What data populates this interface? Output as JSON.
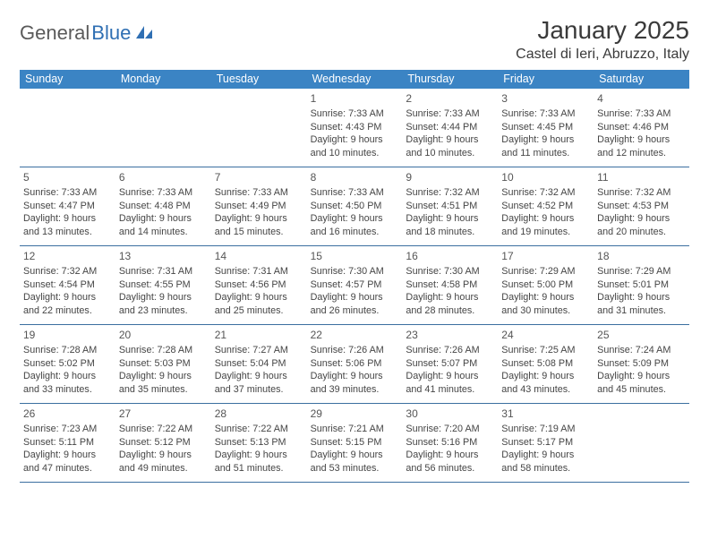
{
  "brand": {
    "part1": "General",
    "part2": "Blue"
  },
  "title": "January 2025",
  "location": "Castel di Ieri, Abruzzo, Italy",
  "colors": {
    "header_bg": "#3b84c4",
    "header_text": "#ffffff",
    "cell_border": "#3b6fa0",
    "body_text": "#454545",
    "title_text": "#3a3a3a",
    "logo_gray": "#5a5a5a",
    "logo_blue": "#2f6fb3"
  },
  "weekdays": [
    "Sunday",
    "Monday",
    "Tuesday",
    "Wednesday",
    "Thursday",
    "Friday",
    "Saturday"
  ],
  "leading_blanks": 3,
  "days": [
    {
      "n": "1",
      "sunrise": "7:33 AM",
      "sunset": "4:43 PM",
      "daylight": "9 hours and 10 minutes."
    },
    {
      "n": "2",
      "sunrise": "7:33 AM",
      "sunset": "4:44 PM",
      "daylight": "9 hours and 10 minutes."
    },
    {
      "n": "3",
      "sunrise": "7:33 AM",
      "sunset": "4:45 PM",
      "daylight": "9 hours and 11 minutes."
    },
    {
      "n": "4",
      "sunrise": "7:33 AM",
      "sunset": "4:46 PM",
      "daylight": "9 hours and 12 minutes."
    },
    {
      "n": "5",
      "sunrise": "7:33 AM",
      "sunset": "4:47 PM",
      "daylight": "9 hours and 13 minutes."
    },
    {
      "n": "6",
      "sunrise": "7:33 AM",
      "sunset": "4:48 PM",
      "daylight": "9 hours and 14 minutes."
    },
    {
      "n": "7",
      "sunrise": "7:33 AM",
      "sunset": "4:49 PM",
      "daylight": "9 hours and 15 minutes."
    },
    {
      "n": "8",
      "sunrise": "7:33 AM",
      "sunset": "4:50 PM",
      "daylight": "9 hours and 16 minutes."
    },
    {
      "n": "9",
      "sunrise": "7:32 AM",
      "sunset": "4:51 PM",
      "daylight": "9 hours and 18 minutes."
    },
    {
      "n": "10",
      "sunrise": "7:32 AM",
      "sunset": "4:52 PM",
      "daylight": "9 hours and 19 minutes."
    },
    {
      "n": "11",
      "sunrise": "7:32 AM",
      "sunset": "4:53 PM",
      "daylight": "9 hours and 20 minutes."
    },
    {
      "n": "12",
      "sunrise": "7:32 AM",
      "sunset": "4:54 PM",
      "daylight": "9 hours and 22 minutes."
    },
    {
      "n": "13",
      "sunrise": "7:31 AM",
      "sunset": "4:55 PM",
      "daylight": "9 hours and 23 minutes."
    },
    {
      "n": "14",
      "sunrise": "7:31 AM",
      "sunset": "4:56 PM",
      "daylight": "9 hours and 25 minutes."
    },
    {
      "n": "15",
      "sunrise": "7:30 AM",
      "sunset": "4:57 PM",
      "daylight": "9 hours and 26 minutes."
    },
    {
      "n": "16",
      "sunrise": "7:30 AM",
      "sunset": "4:58 PM",
      "daylight": "9 hours and 28 minutes."
    },
    {
      "n": "17",
      "sunrise": "7:29 AM",
      "sunset": "5:00 PM",
      "daylight": "9 hours and 30 minutes."
    },
    {
      "n": "18",
      "sunrise": "7:29 AM",
      "sunset": "5:01 PM",
      "daylight": "9 hours and 31 minutes."
    },
    {
      "n": "19",
      "sunrise": "7:28 AM",
      "sunset": "5:02 PM",
      "daylight": "9 hours and 33 minutes."
    },
    {
      "n": "20",
      "sunrise": "7:28 AM",
      "sunset": "5:03 PM",
      "daylight": "9 hours and 35 minutes."
    },
    {
      "n": "21",
      "sunrise": "7:27 AM",
      "sunset": "5:04 PM",
      "daylight": "9 hours and 37 minutes."
    },
    {
      "n": "22",
      "sunrise": "7:26 AM",
      "sunset": "5:06 PM",
      "daylight": "9 hours and 39 minutes."
    },
    {
      "n": "23",
      "sunrise": "7:26 AM",
      "sunset": "5:07 PM",
      "daylight": "9 hours and 41 minutes."
    },
    {
      "n": "24",
      "sunrise": "7:25 AM",
      "sunset": "5:08 PM",
      "daylight": "9 hours and 43 minutes."
    },
    {
      "n": "25",
      "sunrise": "7:24 AM",
      "sunset": "5:09 PM",
      "daylight": "9 hours and 45 minutes."
    },
    {
      "n": "26",
      "sunrise": "7:23 AM",
      "sunset": "5:11 PM",
      "daylight": "9 hours and 47 minutes."
    },
    {
      "n": "27",
      "sunrise": "7:22 AM",
      "sunset": "5:12 PM",
      "daylight": "9 hours and 49 minutes."
    },
    {
      "n": "28",
      "sunrise": "7:22 AM",
      "sunset": "5:13 PM",
      "daylight": "9 hours and 51 minutes."
    },
    {
      "n": "29",
      "sunrise": "7:21 AM",
      "sunset": "5:15 PM",
      "daylight": "9 hours and 53 minutes."
    },
    {
      "n": "30",
      "sunrise": "7:20 AM",
      "sunset": "5:16 PM",
      "daylight": "9 hours and 56 minutes."
    },
    {
      "n": "31",
      "sunrise": "7:19 AM",
      "sunset": "5:17 PM",
      "daylight": "9 hours and 58 minutes."
    }
  ],
  "labels": {
    "sunrise_prefix": "Sunrise: ",
    "sunset_prefix": "Sunset: ",
    "daylight_prefix": "Daylight: "
  }
}
